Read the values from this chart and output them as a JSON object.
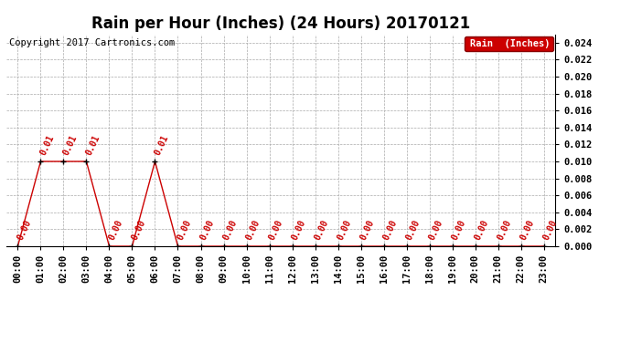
{
  "title": "Rain per Hour (Inches) (24 Hours) 20170121",
  "copyright": "Copyright 2017 Cartronics.com",
  "legend_label": "Rain  (Inches)",
  "hours": [
    0,
    1,
    2,
    3,
    4,
    5,
    6,
    7,
    8,
    9,
    10,
    11,
    12,
    13,
    14,
    15,
    16,
    17,
    18,
    19,
    20,
    21,
    22,
    23
  ],
  "values": [
    0.0,
    0.01,
    0.01,
    0.01,
    0.0,
    0.0,
    0.01,
    0.0,
    0.0,
    0.0,
    0.0,
    0.0,
    0.0,
    0.0,
    0.0,
    0.0,
    0.0,
    0.0,
    0.0,
    0.0,
    0.0,
    0.0,
    0.0,
    0.0
  ],
  "line_color": "#cc0000",
  "marker_color": "#000000",
  "background_color": "#ffffff",
  "grid_color": "#aaaaaa",
  "ylim": [
    0,
    0.025
  ],
  "yticks": [
    0.0,
    0.002,
    0.004,
    0.006,
    0.008,
    0.01,
    0.012,
    0.014,
    0.016,
    0.018,
    0.02,
    0.022,
    0.024
  ],
  "legend_bg": "#cc0000",
  "legend_text_color": "#ffffff",
  "title_fontsize": 12,
  "tick_fontsize": 7.5,
  "annotation_fontsize": 7,
  "copyright_fontsize": 7.5
}
